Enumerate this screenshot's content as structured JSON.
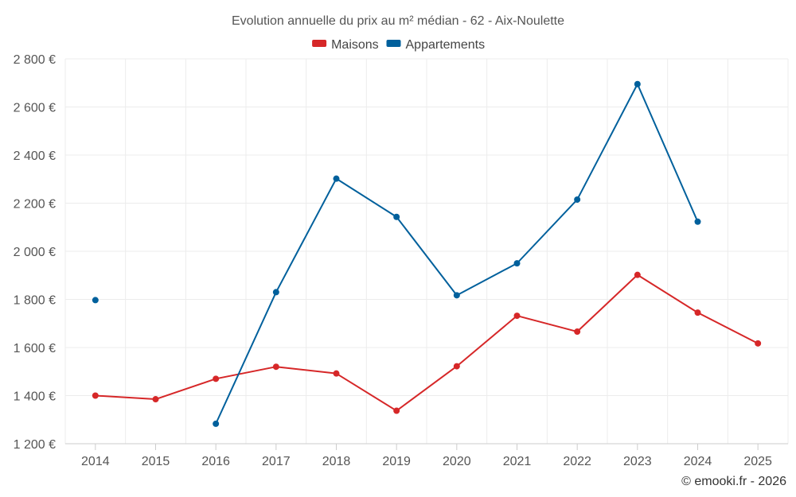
{
  "chart_data": {
    "type": "line",
    "title": "Evolution annuelle du prix au m² médian - 62 - Aix-Noulette",
    "categories": [
      "2014",
      "2015",
      "2016",
      "2017",
      "2018",
      "2019",
      "2020",
      "2021",
      "2022",
      "2023",
      "2024",
      "2025"
    ],
    "series": [
      {
        "name": "Maisons",
        "color": "#d62728",
        "values": [
          1400,
          1385,
          1470,
          1520,
          1492,
          1337,
          1522,
          1732,
          1666,
          1902,
          1745,
          1617
        ]
      },
      {
        "name": "Appartements",
        "color": "#00609c",
        "values": [
          1797,
          null,
          1283,
          1830,
          2302,
          2143,
          1817,
          1950,
          2215,
          2695,
          2123,
          null
        ]
      }
    ],
    "ylim": [
      1200,
      2800
    ],
    "yticks": [
      1200,
      1400,
      1600,
      1800,
      2000,
      2200,
      2400,
      2600,
      2800
    ],
    "ytick_labels": [
      "1 200 €",
      "1 400 €",
      "1 600 €",
      "1 800 €",
      "2 000 €",
      "2 200 €",
      "2 400 €",
      "2 600 €",
      "2 800 €"
    ],
    "xlabel": "",
    "ylabel": "",
    "grid": true,
    "legend_position": "top-center"
  },
  "credit": "© emooki.fr - 2026"
}
